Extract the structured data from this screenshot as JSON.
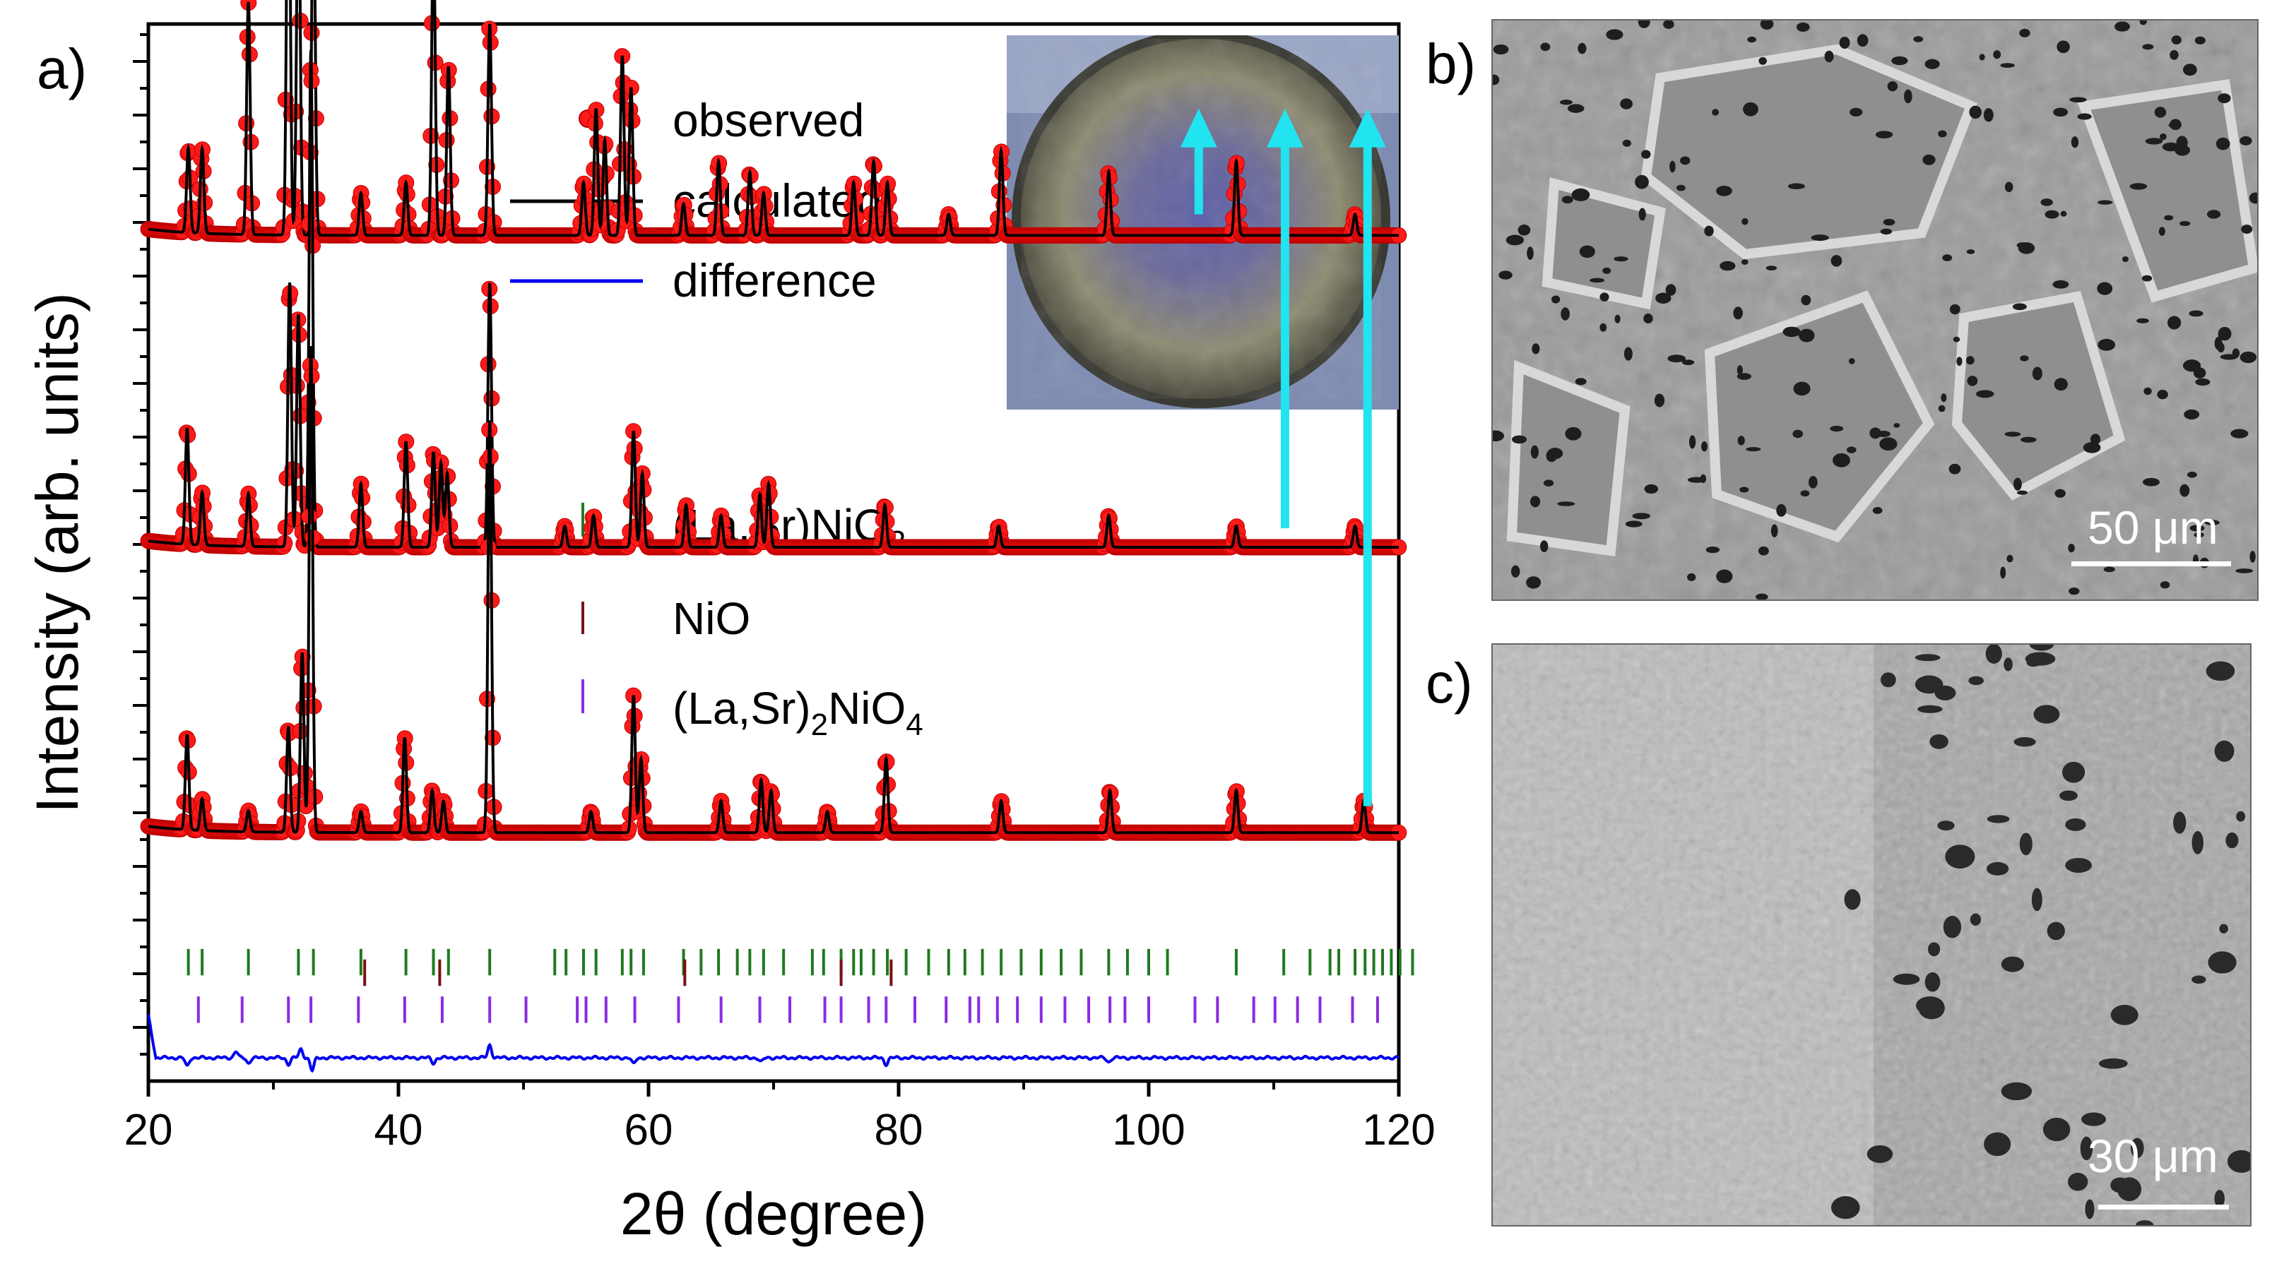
{
  "chart_data": {
    "type": "line",
    "panel_labels": {
      "a": "a)",
      "b": "b)",
      "c": "c)"
    },
    "xlabel": "2θ (degree)",
    "ylabel": "Intensity (arb. units)",
    "xlim": [
      20,
      120
    ],
    "x_ticks": [
      20,
      40,
      60,
      80,
      100,
      120
    ],
    "legend": {
      "observed": "observed",
      "calculated": "calculated",
      "difference": "difference"
    },
    "phases": [
      {
        "name": "(La,Sr)NiO",
        "subscript": "3",
        "suffix": "",
        "color": "#1f7a1f"
      },
      {
        "name": "NiO",
        "subscript": "",
        "suffix": "",
        "color": "#7a1010"
      },
      {
        "name": "(La,Sr)",
        "subscript": "2",
        "suffix": "NiO",
        "subscript2": "4",
        "color": "#8a2be2"
      }
    ],
    "series": [
      {
        "name": "top",
        "baseline": 0.8,
        "peaks": [
          [
            23.2,
            0.08
          ],
          [
            24.3,
            0.08
          ],
          [
            28.0,
            0.22
          ],
          [
            31.2,
            0.44
          ],
          [
            32.0,
            0.36
          ],
          [
            33.2,
            0.34
          ],
          [
            37.0,
            0.04
          ],
          [
            40.6,
            0.05
          ],
          [
            42.8,
            0.29
          ],
          [
            44.0,
            0.16
          ],
          [
            47.3,
            0.2
          ],
          [
            54.8,
            0.05
          ],
          [
            55.8,
            0.12
          ],
          [
            56.5,
            0.09
          ],
          [
            57.9,
            0.17
          ],
          [
            58.6,
            0.14
          ],
          [
            62.8,
            0.03
          ],
          [
            65.6,
            0.07
          ],
          [
            68.1,
            0.06
          ],
          [
            69.2,
            0.04
          ],
          [
            76.4,
            0.05
          ],
          [
            78.0,
            0.07
          ],
          [
            79.1,
            0.05
          ],
          [
            84.0,
            0.02
          ],
          [
            88.2,
            0.08
          ],
          [
            96.8,
            0.06
          ],
          [
            107.0,
            0.07
          ],
          [
            116.5,
            0.02
          ]
        ]
      },
      {
        "name": "middle",
        "baseline": 0.505,
        "peaks": [
          [
            23.1,
            0.11
          ],
          [
            24.3,
            0.05
          ],
          [
            28.0,
            0.05
          ],
          [
            31.3,
            0.25
          ],
          [
            32.0,
            0.22
          ],
          [
            33.0,
            0.47
          ],
          [
            37.0,
            0.06
          ],
          [
            40.6,
            0.1
          ],
          [
            42.8,
            0.09
          ],
          [
            43.4,
            0.08
          ],
          [
            43.9,
            0.07
          ],
          [
            47.3,
            0.25
          ],
          [
            53.3,
            0.02
          ],
          [
            55.6,
            0.03
          ],
          [
            58.8,
            0.11
          ],
          [
            59.5,
            0.07
          ],
          [
            63.0,
            0.04
          ],
          [
            65.8,
            0.03
          ],
          [
            68.9,
            0.05
          ],
          [
            69.6,
            0.06
          ],
          [
            78.9,
            0.04
          ],
          [
            88.0,
            0.02
          ],
          [
            96.8,
            0.03
          ],
          [
            107.0,
            0.02
          ],
          [
            116.5,
            0.02
          ]
        ]
      },
      {
        "name": "bottom",
        "baseline": 0.235,
        "peaks": [
          [
            23.1,
            0.09
          ],
          [
            24.3,
            0.03
          ],
          [
            28.0,
            0.02
          ],
          [
            31.2,
            0.1
          ],
          [
            32.3,
            0.17
          ],
          [
            33.0,
            0.46
          ],
          [
            37.0,
            0.02
          ],
          [
            40.5,
            0.09
          ],
          [
            42.7,
            0.04
          ],
          [
            43.6,
            0.03
          ],
          [
            47.3,
            0.39
          ],
          [
            55.4,
            0.02
          ],
          [
            58.8,
            0.13
          ],
          [
            59.4,
            0.07
          ],
          [
            65.8,
            0.03
          ],
          [
            69.0,
            0.05
          ],
          [
            69.8,
            0.04
          ],
          [
            74.3,
            0.02
          ],
          [
            79.0,
            0.07
          ],
          [
            88.2,
            0.03
          ],
          [
            96.9,
            0.04
          ],
          [
            107.0,
            0.04
          ],
          [
            117.2,
            0.03
          ]
        ]
      }
    ],
    "tick_marks": {
      "la_sr_nio3": [
        23.2,
        24.3,
        28.0,
        32.0,
        33.2,
        37.0,
        40.6,
        42.8,
        44.0,
        47.3,
        52.5,
        53.4,
        54.8,
        55.8,
        57.9,
        58.6,
        59.6,
        62.8,
        64.2,
        65.6,
        67.1,
        68.1,
        69.2,
        70.8,
        73.1,
        74.0,
        75.4,
        76.4,
        77.0,
        78.0,
        79.1,
        80.6,
        82.4,
        84.0,
        85.3,
        86.7,
        88.2,
        89.8,
        91.4,
        93.0,
        94.6,
        96.8,
        98.3,
        100.0,
        101.5,
        107.0,
        110.8,
        112.9,
        114.5,
        115.2,
        116.5,
        117.3,
        118.0,
        118.7,
        119.4,
        120.1,
        121.1
      ],
      "nio": [
        37.3,
        43.3,
        62.9,
        75.4,
        79.4
      ],
      "la_sr2_nio4": [
        24.0,
        27.5,
        31.2,
        33.0,
        36.8,
        40.5,
        43.5,
        47.3,
        50.2,
        54.3,
        55.0,
        56.6,
        58.9,
        62.4,
        65.8,
        68.9,
        71.3,
        74.1,
        75.4,
        77.6,
        79.0,
        81.3,
        83.8,
        85.7,
        86.4,
        87.9,
        89.5,
        91.4,
        93.3,
        95.2,
        96.9,
        98.1,
        100.0,
        103.7,
        105.5,
        108.4,
        110.1,
        111.9,
        113.7,
        116.3,
        118.3
      ]
    },
    "colors": {
      "observed": "#ff1a1a",
      "calculated": "#000000",
      "difference": "#0000ee",
      "arrow": "#22e3f0"
    },
    "arrows_x": [
      104.0,
      110.9,
      117.5
    ],
    "scale_bars": {
      "b": "50 μm",
      "c": "30 μm"
    }
  }
}
